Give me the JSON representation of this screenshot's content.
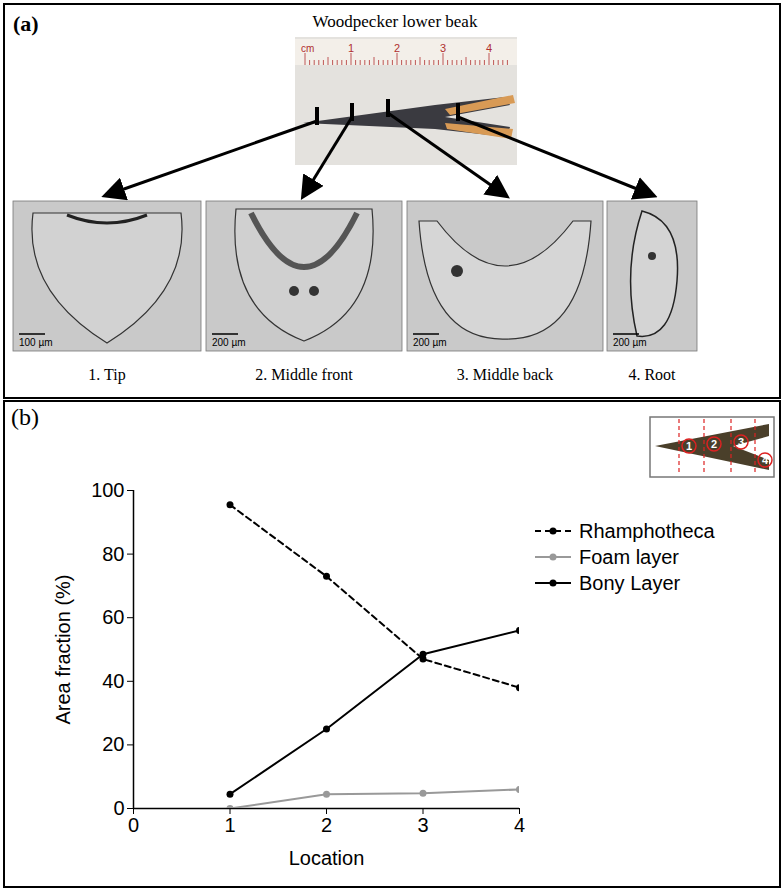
{
  "chart_data": {
    "type": "line",
    "x_label": "Location",
    "y_label": "Area fraction (%)",
    "x": [
      1,
      2,
      3,
      4
    ],
    "series": [
      {
        "name": "Rhamphotheca",
        "color": "#000000",
        "line_style": "dashed",
        "marker": "circle",
        "values": [
          95.5,
          73,
          47,
          38
        ]
      },
      {
        "name": "Foam layer",
        "color": "#999999",
        "line_style": "solid",
        "marker": "circle",
        "values": [
          0,
          4.5,
          4.8,
          6
        ]
      },
      {
        "name": "Bony Layer",
        "color": "#000000",
        "line_style": "solid",
        "marker": "circle",
        "values": [
          4.5,
          25,
          48.5,
          56
        ]
      }
    ],
    "xlim": [
      0,
      4
    ],
    "xticks": [
      0,
      1,
      2,
      3,
      4
    ],
    "ylim": [
      0,
      100
    ],
    "yticks": [
      0,
      20,
      40,
      60,
      80,
      100
    ],
    "grid": false,
    "legend": "right"
  },
  "panels": {
    "a": {
      "letter": "(a)",
      "title": "Woodpecker lower beak",
      "ruler": {
        "unit": "cm",
        "labels": [
          "1",
          "2",
          "3",
          "4"
        ]
      },
      "sections": [
        {
          "label": "1. Tip",
          "scale_bar": "100 µm"
        },
        {
          "label": "2. Middle front",
          "scale_bar": "200 µm"
        },
        {
          "label": "3. Middle back",
          "scale_bar": "200 µm"
        },
        {
          "label": "4. Root",
          "scale_bar": "200 µm"
        }
      ]
    },
    "b": {
      "letter": "(b)",
      "inset_labels": [
        "1",
        "2",
        "3",
        "4"
      ]
    }
  }
}
